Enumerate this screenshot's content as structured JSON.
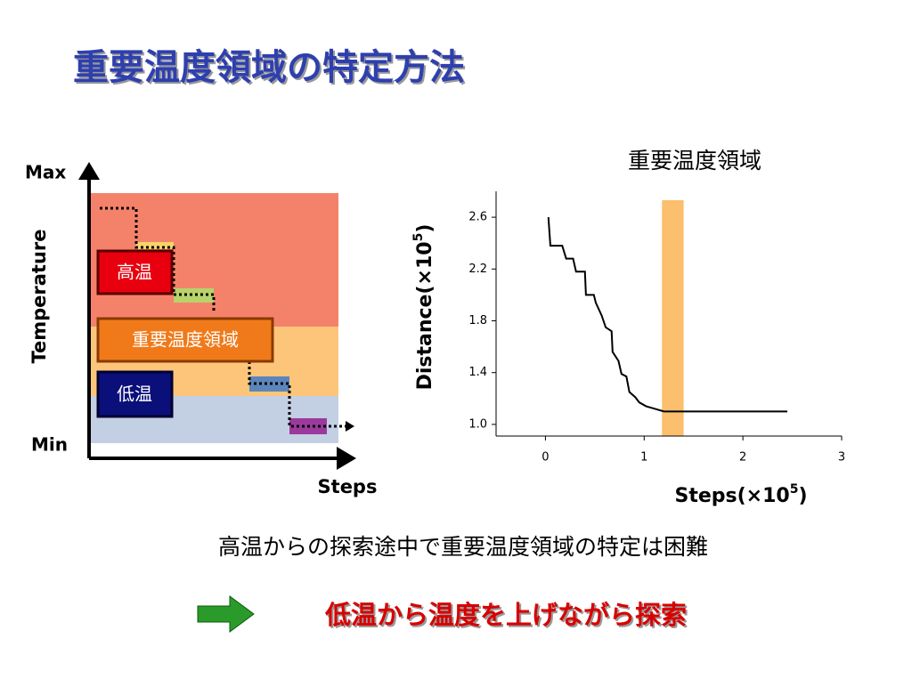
{
  "title": "重要温度領域の特定方法",
  "diagram": {
    "y_max": "Max",
    "y_min": "Min",
    "y_label": "Temperature",
    "x_label": "Steps",
    "regions": [
      "高温",
      "重要温度領域",
      "低温"
    ]
  },
  "chart_data": {
    "type": "line",
    "title": "重要温度領域",
    "y_label": {
      "text": "Distance(×10",
      "superscript": "5",
      "suffix": ")"
    },
    "x_label": {
      "text": "Steps(×10",
      "superscript": "5",
      "suffix": ")"
    },
    "x": [
      0.03,
      0.05,
      0.17,
      0.21,
      0.28,
      0.31,
      0.4,
      0.41,
      0.49,
      0.51,
      0.57,
      0.61,
      0.67,
      0.68,
      0.74,
      0.77,
      0.82,
      0.85,
      0.91,
      0.95,
      1.02,
      1.11,
      1.2,
      2.45
    ],
    "series": [
      {
        "color": "#000000",
        "values": [
          2.6,
          2.38,
          2.38,
          2.28,
          2.28,
          2.18,
          2.18,
          2.0,
          2.0,
          1.94,
          1.84,
          1.75,
          1.72,
          1.56,
          1.49,
          1.39,
          1.37,
          1.25,
          1.21,
          1.17,
          1.14,
          1.12,
          1.1,
          1.1
        ]
      }
    ],
    "highlight": {
      "xrange": [
        1.18,
        1.4
      ],
      "color": "#fbbf6e"
    },
    "xlim": [
      -0.5,
      3
    ],
    "ylim": [
      0.91,
      2.8
    ],
    "xticks": [
      0,
      1,
      2,
      3
    ],
    "yticks": [
      {
        "value": 1,
        "label": "1.0"
      },
      1.4,
      1.8,
      2.2,
      2.6
    ]
  },
  "notes": {
    "problem": "高温からの探索途中で重要温度領域の特定は困難",
    "solution": "低温から温度を上げながら探索"
  }
}
